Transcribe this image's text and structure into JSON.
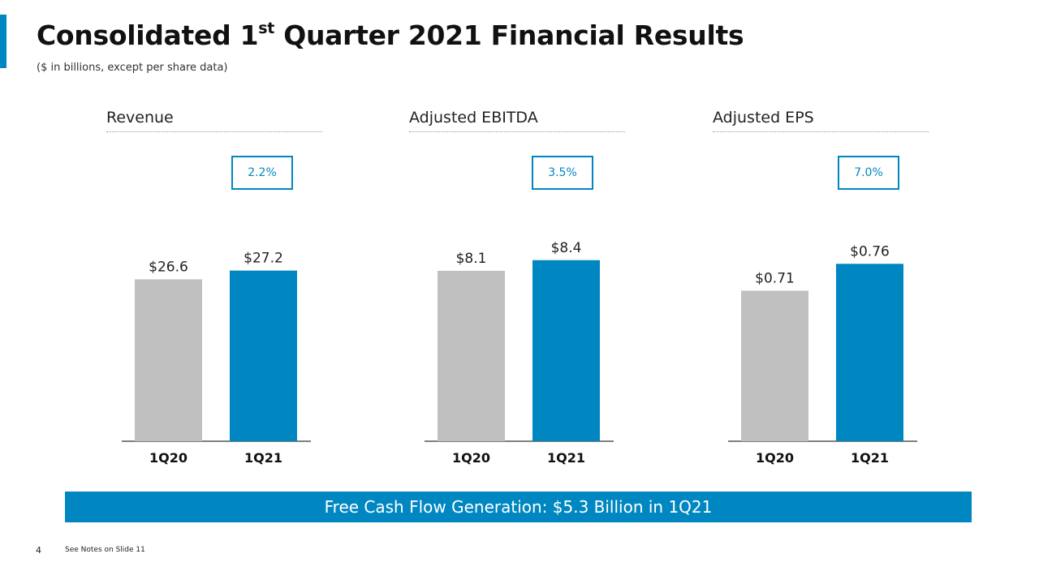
{
  "header": {
    "title_main": "Consolidated 1",
    "title_sup": "st",
    "title_rest": " Quarter 2021 Financial Results",
    "subtitle": "($ in billions, except per share data)"
  },
  "colors": {
    "accent": "#0087c1",
    "prior_bar": "#c0c0c0",
    "current_bar": "#0087c1"
  },
  "chart_data": [
    {
      "type": "bar",
      "title": "Revenue",
      "growth": "2.2%",
      "categories": [
        "1Q20",
        "1Q21"
      ],
      "values": [
        26.6,
        27.2
      ],
      "value_labels": [
        "$26.6",
        "$27.2"
      ]
    },
    {
      "type": "bar",
      "title": "Adjusted EBITDA",
      "growth": "3.5%",
      "categories": [
        "1Q20",
        "1Q21"
      ],
      "values": [
        8.1,
        8.4
      ],
      "value_labels": [
        "$8.1",
        "$8.4"
      ]
    },
    {
      "type": "bar",
      "title": "Adjusted EPS",
      "growth": "7.0%",
      "categories": [
        "1Q20",
        "1Q21"
      ],
      "values": [
        0.71,
        0.76
      ],
      "value_labels": [
        "$0.71",
        "$0.76"
      ]
    }
  ],
  "footer": {
    "banner": "Free Cash Flow Generation: $5.3 Billion in 1Q21",
    "page_number": "4",
    "notes": "See Notes on Slide 11"
  }
}
